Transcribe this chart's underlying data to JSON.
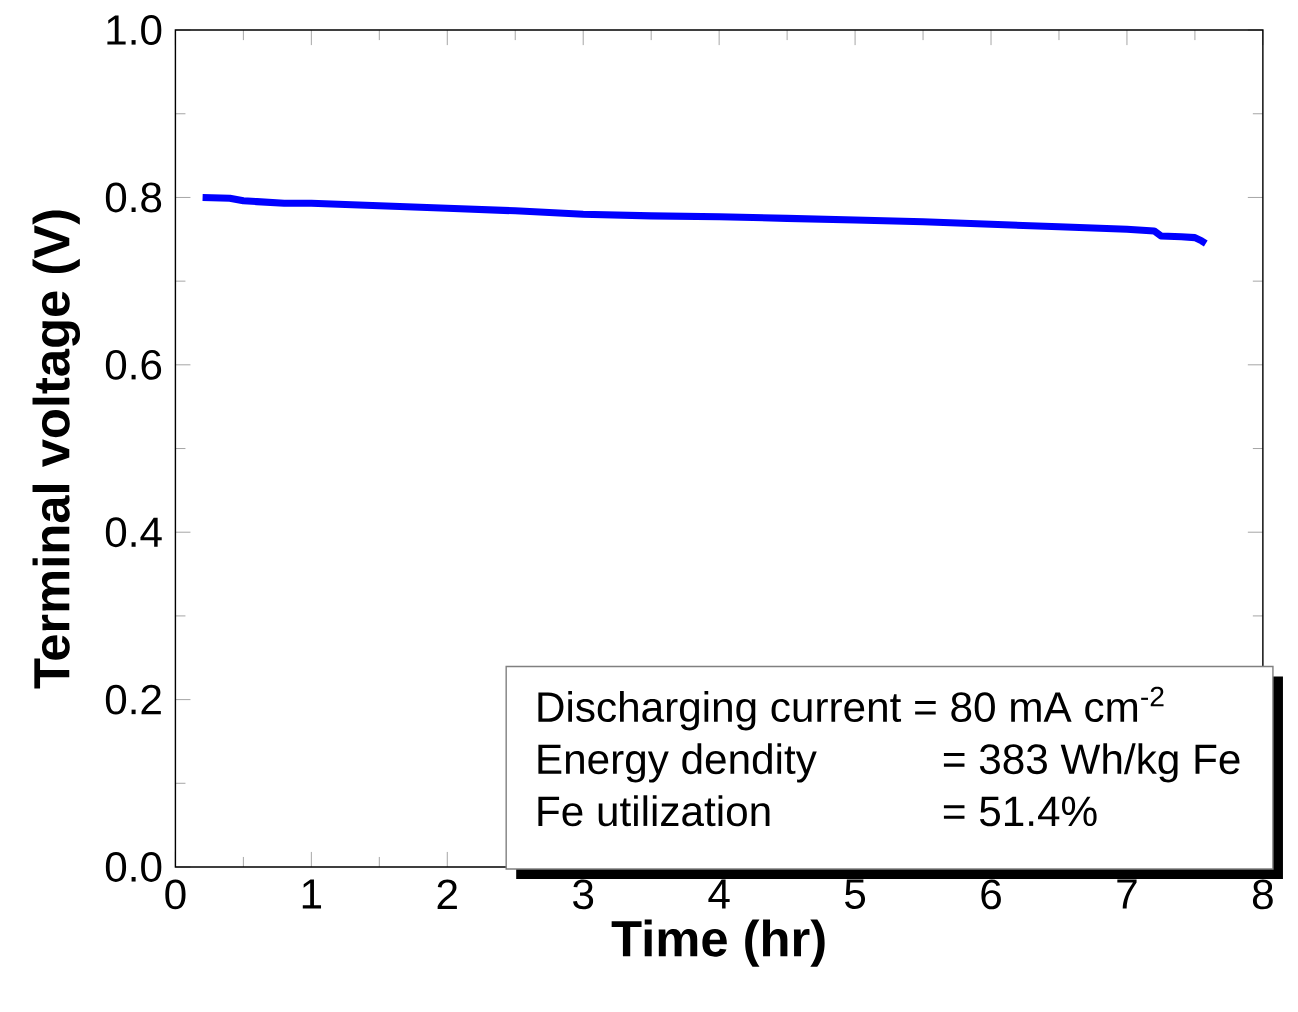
{
  "chart_data": {
    "type": "line",
    "xlabel": "Time (hr)",
    "ylabel": "Terminal voltage (V)",
    "x": [
      0.2,
      0.4,
      0.5,
      0.6,
      0.8,
      1.0,
      1.5,
      2.0,
      2.5,
      3.0,
      3.5,
      4.0,
      4.5,
      5.0,
      5.5,
      6.0,
      6.5,
      7.0,
      7.2,
      7.25,
      7.4,
      7.5,
      7.55,
      7.58
    ],
    "series": [
      {
        "color": "#0000ff",
        "values": [
          0.8,
          0.799,
          0.796,
          0.795,
          0.793,
          0.793,
          0.79,
          0.787,
          0.784,
          0.78,
          0.778,
          0.777,
          0.775,
          0.773,
          0.771,
          0.768,
          0.765,
          0.762,
          0.76,
          0.754,
          0.753,
          0.752,
          0.748,
          0.745
        ]
      }
    ],
    "xlim": [
      0,
      8
    ],
    "xticks": [
      0,
      1,
      2,
      3,
      4,
      5,
      6,
      7,
      8
    ],
    "ylim": [
      0,
      1
    ],
    "yticks": [
      {
        "value": 0,
        "label": "0.0"
      },
      {
        "value": 0.2,
        "label": "0.2"
      },
      {
        "value": 0.4,
        "label": "0.4"
      },
      {
        "value": 0.6,
        "label": "0.6"
      },
      {
        "value": 0.8,
        "label": "0.8"
      },
      {
        "value": 1,
        "label": "1.0"
      }
    ],
    "annotations": [
      "Discharging current = 80 mA cm$^{-2}$",
      "Energy dendity",
      "= 383 Wh/kg Fe",
      "Fe utilization",
      "= 51.4%"
    ]
  }
}
